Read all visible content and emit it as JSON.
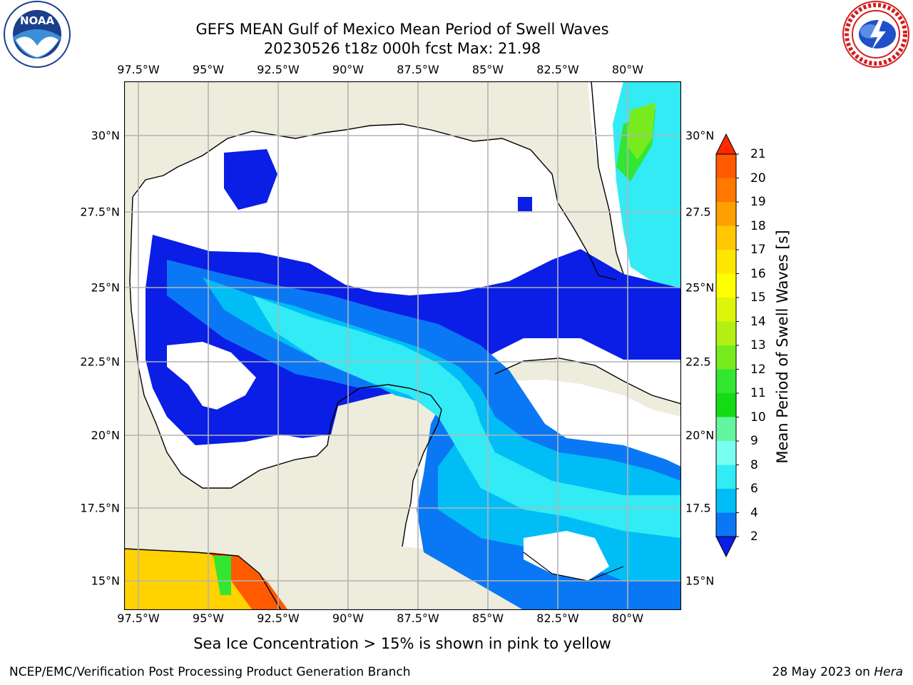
{
  "header": {
    "title_line1": "GEFS MEAN Gulf of Mexico Mean Period of Swell Waves",
    "title_line2": "20230526 t18z 000h fcst   Max: 21.98"
  },
  "logos": {
    "left": {
      "name": "noaa-logo",
      "text": "NOAA"
    },
    "right": {
      "name": "nws-logo",
      "text": "NATIONAL WEATHER SERVICE"
    }
  },
  "axes": {
    "lon_labels": [
      "97.5°W",
      "95°W",
      "92.5°W",
      "90°W",
      "87.5°W",
      "85°W",
      "82.5°W",
      "80°W"
    ],
    "lat_labels_left": [
      "30°N",
      "27.5°N",
      "25°N",
      "22.5°N",
      "20°N",
      "17.5°N",
      "15°N"
    ],
    "lat_labels_right": [
      "30°N",
      "27.5",
      "25°N",
      "22.5",
      "20°N",
      "17.5",
      "15°N"
    ]
  },
  "colorbar": {
    "label": "Mean Period of Swell Waves [s]",
    "ticks": [
      "2",
      "4",
      "6",
      "8",
      "9",
      "10",
      "11",
      "12",
      "13",
      "14",
      "15",
      "16",
      "17",
      "18",
      "19",
      "20",
      "21"
    ],
    "colors": [
      "#0a3cf0",
      "#0a78f5",
      "#00bef5",
      "#32ebf5",
      "#78fff0",
      "#64f5a0",
      "#14dc14",
      "#32e632",
      "#78eb1e",
      "#b4f014",
      "#dcf50a",
      "#ffff00",
      "#ffe600",
      "#ffc800",
      "#ffa000",
      "#ff7800",
      "#ff5a00",
      "#ff2800"
    ],
    "arrow_low": "#0a1ee6",
    "arrow_high": "#ff2800"
  },
  "map_colors": {
    "land": "#eeecdc",
    "coast": "#000000",
    "grid": "#b4b4b4"
  },
  "footer": {
    "note": "Sea Ice Concentration > 15% is shown in pink to yellow",
    "left_credit": "NCEP/EMC/Verification Post Processing Product Generation Branch",
    "right_credit_date": "28 May 2023 on ",
    "right_credit_host": "Hera"
  }
}
